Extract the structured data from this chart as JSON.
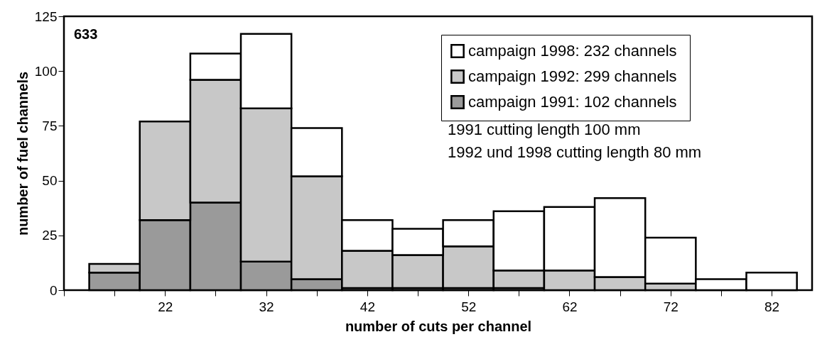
{
  "chart_data": {
    "type": "bar",
    "xlabel": "number of cuts per channel",
    "ylabel": "number of fuel channels",
    "annotations": [
      "633",
      "1991  cutting length  100 mm",
      "1992 und 1998 cutting  length 80 mm"
    ],
    "x": [
      17,
      22,
      27,
      32,
      37,
      42,
      47,
      52,
      57,
      62,
      67,
      72,
      77,
      82
    ],
    "stacked": true,
    "series": [
      {
        "name": "campaign 1991:  102 channels",
        "color": "#9a9a9a",
        "values": [
          8,
          32,
          40,
          13,
          5,
          1,
          1,
          1,
          1,
          0,
          0,
          0,
          0,
          0
        ]
      },
      {
        "name": "campaign 1992:  299 channels",
        "color": "#c8c8c8",
        "values": [
          4,
          45,
          56,
          70,
          47,
          17,
          15,
          19,
          8,
          9,
          6,
          3,
          0,
          0
        ]
      },
      {
        "name": "campaign 1998:  232 channels",
        "color": "#ffffff",
        "values": [
          0,
          0,
          12,
          34,
          22,
          14,
          12,
          12,
          27,
          29,
          36,
          21,
          5,
          8
        ]
      }
    ],
    "xlim": [
      12,
      86
    ],
    "xticks": [
      {
        "value": 12,
        "label": null
      },
      {
        "value": 17,
        "label": null
      },
      22,
      {
        "value": 27,
        "label": null
      },
      32,
      {
        "value": 37,
        "label": null
      },
      42,
      {
        "value": 47,
        "label": null
      },
      52,
      {
        "value": 57,
        "label": null
      },
      62,
      {
        "value": 67,
        "label": null
      },
      72,
      {
        "value": 77,
        "label": null
      },
      82
    ],
    "ylim": [
      0,
      125
    ],
    "yticks": [
      0,
      25,
      50,
      75,
      100,
      125
    ],
    "grid": false,
    "legend": "top right"
  }
}
